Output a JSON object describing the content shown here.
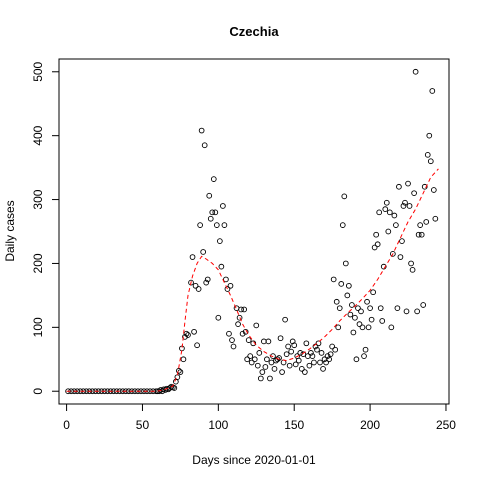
{
  "chart_data": {
    "type": "scatter",
    "title": "Czechia",
    "xlabel": "Days since 2020-01-01",
    "ylabel": "Daily cases",
    "xlim": [
      -5,
      252
    ],
    "ylim": [
      -20,
      520
    ],
    "xticks": [
      0,
      50,
      100,
      150,
      200,
      250
    ],
    "yticks": [
      0,
      100,
      200,
      300,
      400,
      500
    ],
    "grid": false,
    "series": [
      {
        "marker": "open-circle",
        "color": "#000000",
        "points": [
          [
            1,
            0
          ],
          [
            3,
            0
          ],
          [
            5,
            0
          ],
          [
            7,
            0
          ],
          [
            9,
            0
          ],
          [
            11,
            0
          ],
          [
            13,
            0
          ],
          [
            15,
            0
          ],
          [
            17,
            0
          ],
          [
            19,
            0
          ],
          [
            21,
            0
          ],
          [
            23,
            0
          ],
          [
            25,
            0
          ],
          [
            27,
            0
          ],
          [
            29,
            0
          ],
          [
            31,
            0
          ],
          [
            33,
            0
          ],
          [
            35,
            0
          ],
          [
            37,
            0
          ],
          [
            39,
            0
          ],
          [
            41,
            0
          ],
          [
            43,
            0
          ],
          [
            45,
            0
          ],
          [
            47,
            0
          ],
          [
            49,
            0
          ],
          [
            51,
            0
          ],
          [
            53,
            0
          ],
          [
            55,
            0
          ],
          [
            57,
            0
          ],
          [
            59,
            0
          ],
          [
            60,
            0
          ],
          [
            61,
            0
          ],
          [
            62,
            2
          ],
          [
            63,
            0
          ],
          [
            64,
            3
          ],
          [
            65,
            2
          ],
          [
            66,
            4
          ],
          [
            67,
            3
          ],
          [
            68,
            5
          ],
          [
            69,
            7
          ],
          [
            70,
            6
          ],
          [
            71,
            5
          ],
          [
            72,
            15
          ],
          [
            73,
            22
          ],
          [
            74,
            32
          ],
          [
            75,
            30
          ],
          [
            76,
            67
          ],
          [
            77,
            50
          ],
          [
            78,
            85
          ],
          [
            79,
            90
          ],
          [
            80,
            88
          ],
          [
            82,
            170
          ],
          [
            83,
            210
          ],
          [
            84,
            93
          ],
          [
            85,
            165
          ],
          [
            86,
            72
          ],
          [
            87,
            160
          ],
          [
            88,
            260
          ],
          [
            89,
            408
          ],
          [
            90,
            218
          ],
          [
            91,
            385
          ],
          [
            92,
            170
          ],
          [
            93,
            175
          ],
          [
            94,
            306
          ],
          [
            95,
            270
          ],
          [
            96,
            280
          ],
          [
            97,
            332
          ],
          [
            98,
            280
          ],
          [
            99,
            260
          ],
          [
            100,
            115
          ],
          [
            101,
            235
          ],
          [
            102,
            195
          ],
          [
            103,
            290
          ],
          [
            104,
            260
          ],
          [
            105,
            175
          ],
          [
            106,
            160
          ],
          [
            107,
            90
          ],
          [
            108,
            165
          ],
          [
            109,
            80
          ],
          [
            110,
            70
          ],
          [
            112,
            130
          ],
          [
            113,
            105
          ],
          [
            114,
            115
          ],
          [
            115,
            128
          ],
          [
            116,
            90
          ],
          [
            117,
            128
          ],
          [
            118,
            93
          ],
          [
            119,
            50
          ],
          [
            120,
            80
          ],
          [
            121,
            55
          ],
          [
            122,
            45
          ],
          [
            123,
            75
          ],
          [
            124,
            50
          ],
          [
            125,
            103
          ],
          [
            126,
            40
          ],
          [
            127,
            60
          ],
          [
            128,
            20
          ],
          [
            129,
            30
          ],
          [
            130,
            78
          ],
          [
            131,
            38
          ],
          [
            132,
            50
          ],
          [
            133,
            78
          ],
          [
            134,
            20
          ],
          [
            135,
            45
          ],
          [
            136,
            55
          ],
          [
            137,
            35
          ],
          [
            138,
            48
          ],
          [
            139,
            50
          ],
          [
            140,
            52
          ],
          [
            141,
            83
          ],
          [
            142,
            30
          ],
          [
            143,
            45
          ],
          [
            144,
            112
          ],
          [
            145,
            58
          ],
          [
            146,
            70
          ],
          [
            147,
            40
          ],
          [
            148,
            62
          ],
          [
            149,
            78
          ],
          [
            150,
            72
          ],
          [
            151,
            42
          ],
          [
            152,
            55
          ],
          [
            153,
            48
          ],
          [
            154,
            60
          ],
          [
            155,
            35
          ],
          [
            156,
            58
          ],
          [
            157,
            30
          ],
          [
            158,
            75
          ],
          [
            159,
            55
          ],
          [
            160,
            40
          ],
          [
            161,
            60
          ],
          [
            162,
            55
          ],
          [
            163,
            45
          ],
          [
            164,
            70
          ],
          [
            165,
            65
          ],
          [
            166,
            75
          ],
          [
            167,
            45
          ],
          [
            168,
            60
          ],
          [
            169,
            35
          ],
          [
            170,
            50
          ],
          [
            171,
            45
          ],
          [
            172,
            55
          ],
          [
            173,
            50
          ],
          [
            174,
            58
          ],
          [
            175,
            70
          ],
          [
            176,
            175
          ],
          [
            177,
            65
          ],
          [
            178,
            140
          ],
          [
            179,
            100
          ],
          [
            180,
            130
          ],
          [
            181,
            168
          ],
          [
            182,
            260
          ],
          [
            183,
            305
          ],
          [
            184,
            200
          ],
          [
            185,
            150
          ],
          [
            186,
            165
          ],
          [
            187,
            120
          ],
          [
            188,
            135
          ],
          [
            189,
            92
          ],
          [
            190,
            115
          ],
          [
            191,
            50
          ],
          [
            192,
            130
          ],
          [
            193,
            105
          ],
          [
            194,
            125
          ],
          [
            195,
            100
          ],
          [
            196,
            55
          ],
          [
            197,
            65
          ],
          [
            198,
            140
          ],
          [
            199,
            100
          ],
          [
            200,
            130
          ],
          [
            201,
            112
          ],
          [
            202,
            155
          ],
          [
            203,
            225
          ],
          [
            204,
            245
          ],
          [
            205,
            230
          ],
          [
            206,
            280
          ],
          [
            207,
            130
          ],
          [
            208,
            110
          ],
          [
            209,
            195
          ],
          [
            210,
            285
          ],
          [
            211,
            295
          ],
          [
            212,
            250
          ],
          [
            213,
            280
          ],
          [
            214,
            100
          ],
          [
            215,
            215
          ],
          [
            216,
            275
          ],
          [
            217,
            260
          ],
          [
            218,
            130
          ],
          [
            219,
            320
          ],
          [
            220,
            210
          ],
          [
            221,
            235
          ],
          [
            222,
            290
          ],
          [
            223,
            295
          ],
          [
            224,
            125
          ],
          [
            225,
            325
          ],
          [
            226,
            290
          ],
          [
            227,
            200
          ],
          [
            228,
            190
          ],
          [
            229,
            310
          ],
          [
            230,
            500
          ],
          [
            231,
            125
          ],
          [
            232,
            245
          ],
          [
            233,
            260
          ],
          [
            234,
            245
          ],
          [
            235,
            135
          ],
          [
            236,
            320
          ],
          [
            237,
            265
          ],
          [
            238,
            370
          ],
          [
            239,
            400
          ],
          [
            240,
            360
          ],
          [
            241,
            470
          ],
          [
            242,
            315
          ],
          [
            243,
            270
          ]
        ]
      },
      {
        "style": "dashed-line",
        "color": "#ff0000",
        "points": [
          [
            0,
            0
          ],
          [
            60,
            0
          ],
          [
            65,
            3
          ],
          [
            70,
            8
          ],
          [
            73,
            25
          ],
          [
            76,
            65
          ],
          [
            78,
            110
          ],
          [
            80,
            150
          ],
          [
            83,
            180
          ],
          [
            86,
            200
          ],
          [
            89,
            211
          ],
          [
            92,
            207
          ],
          [
            96,
            200
          ],
          [
            100,
            190
          ],
          [
            104,
            170
          ],
          [
            108,
            150
          ],
          [
            112,
            128
          ],
          [
            116,
            105
          ],
          [
            120,
            88
          ],
          [
            125,
            72
          ],
          [
            130,
            62
          ],
          [
            135,
            55
          ],
          [
            140,
            50
          ],
          [
            145,
            48
          ],
          [
            150,
            52
          ],
          [
            155,
            58
          ],
          [
            160,
            66
          ],
          [
            165,
            75
          ],
          [
            170,
            85
          ],
          [
            175,
            97
          ],
          [
            180,
            110
          ],
          [
            185,
            122
          ],
          [
            190,
            133
          ],
          [
            195,
            145
          ],
          [
            200,
            158
          ],
          [
            205,
            175
          ],
          [
            210,
            195
          ],
          [
            215,
            215
          ],
          [
            220,
            240
          ],
          [
            225,
            265
          ],
          [
            230,
            285
          ],
          [
            235,
            310
          ],
          [
            240,
            335
          ],
          [
            245,
            348
          ]
        ]
      }
    ]
  }
}
